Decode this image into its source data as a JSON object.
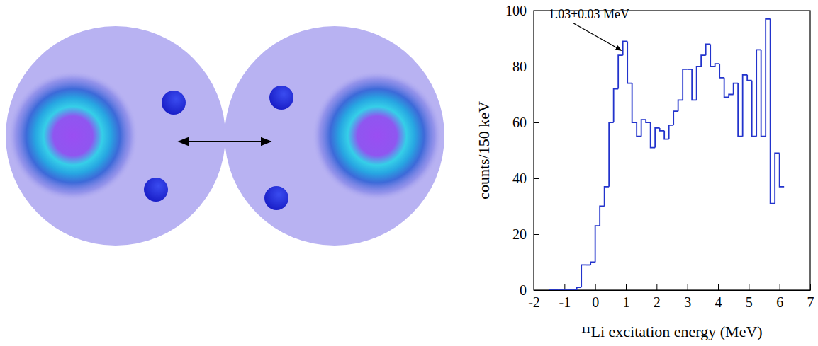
{
  "chart_data": {
    "type": "histogram",
    "x_label": "¹¹Li excitation energy (MeV)",
    "y_label": "counts/150 keV",
    "bins": [
      -1.5,
      -1.35,
      -1.2,
      -1.05,
      -0.9,
      -0.75,
      -0.6,
      -0.45,
      -0.3,
      -0.15,
      0,
      0.15,
      0.3,
      0.45,
      0.6,
      0.75,
      0.9,
      1.05,
      1.2,
      1.35,
      1.5,
      1.65,
      1.8,
      1.95,
      2.1,
      2.25,
      2.4,
      2.55,
      2.7,
      2.85,
      3,
      3.15,
      3.3,
      3.45,
      3.6,
      3.75,
      3.9,
      4.05,
      4.2,
      4.35,
      4.5,
      4.65,
      4.8,
      4.95,
      5.1,
      5.25,
      5.4,
      5.55,
      5.7,
      5.85,
      6,
      6.15
    ],
    "values": [
      0,
      0,
      0,
      0,
      0,
      0,
      1,
      9,
      9,
      10,
      23,
      30,
      37,
      60,
      72,
      84,
      89,
      74,
      60,
      55,
      61,
      60,
      51,
      58,
      57,
      54,
      59,
      64,
      68,
      79,
      79,
      68,
      80,
      84,
      88,
      80,
      81,
      76,
      69,
      70,
      74,
      55,
      77,
      75,
      55,
      86,
      55,
      97,
      31,
      49,
      37
    ],
    "color": "#2233cc",
    "xlim": [
      -2,
      7
    ],
    "xticks": [
      -2,
      -1,
      0,
      1,
      2,
      3,
      4,
      5,
      6,
      7
    ],
    "ylim": [
      0,
      100
    ],
    "yticks": [
      0,
      20,
      40,
      60,
      80,
      100
    ],
    "annotations": [
      {
        "text": "1.03±0.03 MeV",
        "x": 0.9,
        "y": 85
      }
    ]
  }
}
